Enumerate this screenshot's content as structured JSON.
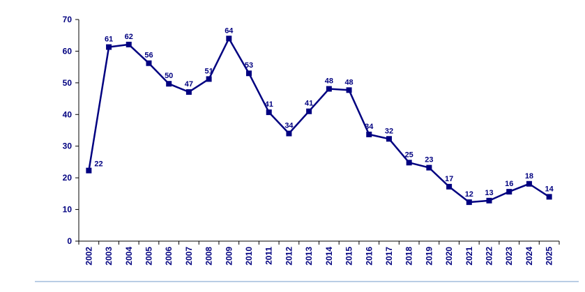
{
  "colors": {
    "series": "#000080",
    "axis": "#000000",
    "rule": "#b9cde5"
  },
  "chart_data": {
    "type": "line",
    "title": "",
    "xlabel": "",
    "ylabel": "",
    "ylim": [
      0,
      70
    ],
    "yticks": [
      "0",
      "10",
      "20",
      "30",
      "40",
      "50",
      "60",
      "70"
    ],
    "grid": false,
    "legend": "none",
    "marker": "square",
    "categories": [
      "2002",
      "2003",
      "2004",
      "2005",
      "2006",
      "2007",
      "2008",
      "2009",
      "2010",
      "2011",
      "2012",
      "2013",
      "2014",
      "2015",
      "2016",
      "2017",
      "2018",
      "2019",
      "2020",
      "2021",
      "2022",
      "2023",
      "2024",
      "2025"
    ],
    "series": [
      {
        "values": [
          22.3,
          61.3,
          62.1,
          56.2,
          49.7,
          47.1,
          51.2,
          64.0,
          53.0,
          40.7,
          34.0,
          41.0,
          48.1,
          47.7,
          33.7,
          32.3,
          24.8,
          23.2,
          17.2,
          12.3,
          12.8,
          15.6,
          18.1,
          14.0
        ],
        "labels": [
          "22",
          "61",
          "62",
          "56",
          "50",
          "47",
          "51",
          "64",
          "53",
          "41",
          "34",
          "41",
          "48",
          "48",
          "34",
          "32",
          "25",
          "23",
          "17",
          "12",
          "13",
          "16",
          "18",
          "14"
        ]
      }
    ]
  }
}
